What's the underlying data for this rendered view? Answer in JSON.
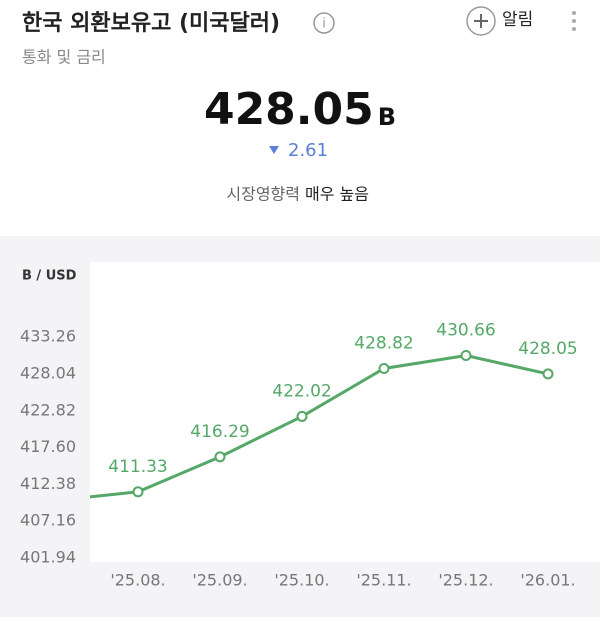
{
  "header": {
    "title": "한국 외환보유고 (미국달러)",
    "alert": "알림",
    "subtitle": "통화 및 금리",
    "value": "428.05",
    "unit": "B",
    "change": "2.61",
    "impact_label": "시장영향력",
    "impact_value": "매우 높음"
  },
  "chart_data": {
    "type": "line",
    "y_unit": "B / USD",
    "categories": [
      null,
      "'25.08.",
      "'25.09.",
      "'25.10.",
      "'25.11.",
      "'25.12.",
      "'26.01."
    ],
    "series": [
      {
        "name": "외환보유고",
        "color": "#55a868",
        "values": [
          410.09,
          411.33,
          416.29,
          422.02,
          428.82,
          430.66,
          428.05
        ]
      }
    ],
    "ylim": [
      401.94,
      443.5
    ],
    "yticks": [
      {
        "value": 401.94,
        "label": "401.94"
      },
      {
        "value": 407.16,
        "label": "407.16"
      },
      {
        "value": 412.38,
        "label": "412.38"
      },
      {
        "value": 417.6,
        "label": "417.60"
      },
      {
        "value": 422.82,
        "label": "422.82"
      },
      {
        "value": 428.04,
        "label": "428.04"
      },
      {
        "value": 433.26,
        "label": "433.26"
      }
    ]
  }
}
